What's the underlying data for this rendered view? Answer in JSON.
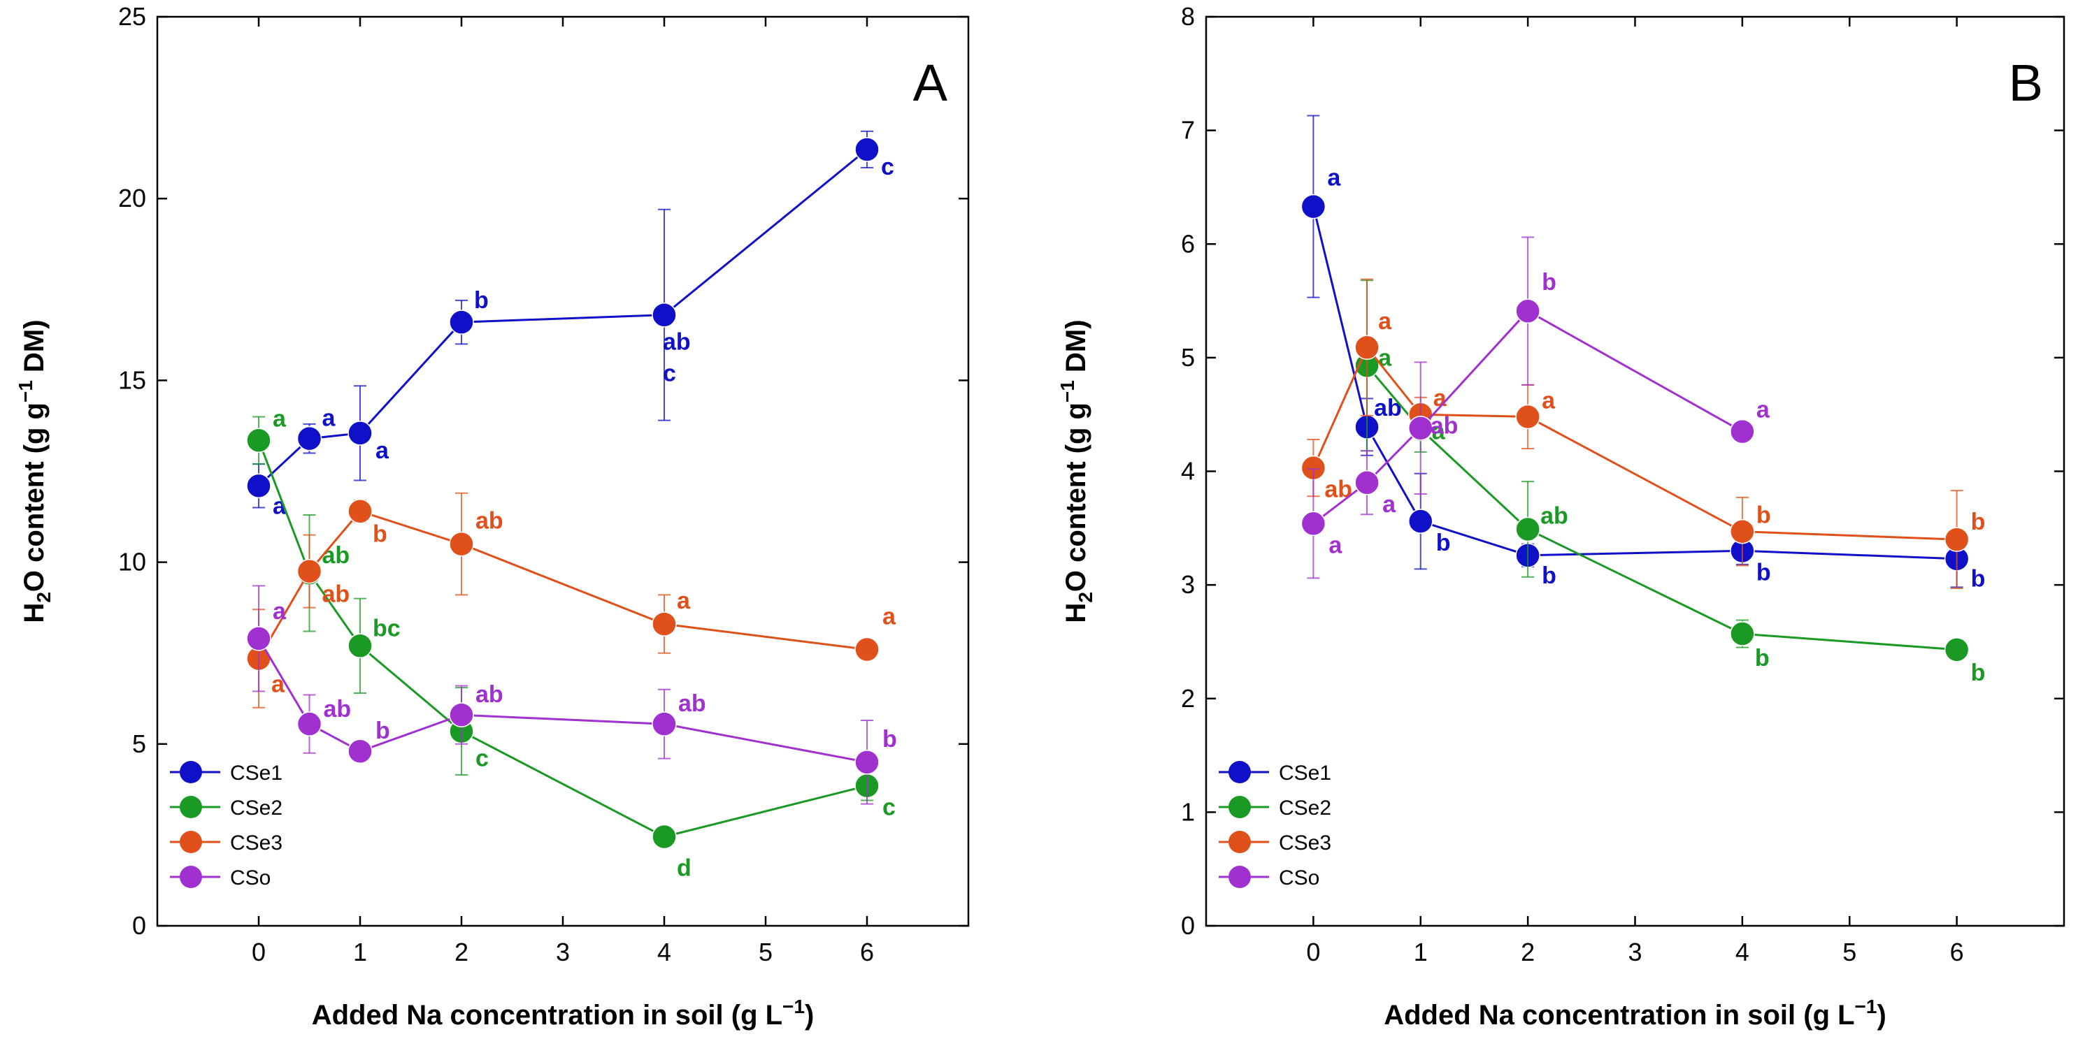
{
  "chart_data": [
    {
      "type": "line",
      "panel_label": "A",
      "xlabel": "Added Na concentration in soil (g L",
      "xlabel_sup": "−1",
      "xlabel_end": ")",
      "ylabel_pre": "H",
      "ylabel_sub": "2",
      "ylabel_mid": "O content (g g",
      "ylabel_sup": "−1",
      "ylabel_end": " DM)",
      "xlim": [
        -1,
        7
      ],
      "ylim": [
        0,
        25
      ],
      "xticks": [
        "0",
        "1",
        "2",
        "3",
        "4",
        "5",
        "6"
      ],
      "xtick_values": [
        0,
        1,
        2,
        3,
        4,
        5,
        6
      ],
      "yticks": [
        "0",
        "5",
        "10",
        "15",
        "20",
        "25"
      ],
      "ytick_values": [
        0,
        5,
        10,
        15,
        20,
        25
      ],
      "legend_position": "bottom-left",
      "series": [
        {
          "name": "CSe1",
          "color": "#1010c8",
          "x": [
            0,
            0.5,
            1,
            2,
            4,
            6
          ],
          "y": [
            12.1,
            13.4,
            13.55,
            16.6,
            16.8,
            21.35
          ],
          "err": [
            0.6,
            0.4,
            1.3,
            0.6,
            2.9,
            0.5
          ],
          "labels": [
            "a",
            "a",
            "a",
            "b",
            "ab c",
            "c"
          ]
        },
        {
          "name": "CSe2",
          "color": "#1a9a24",
          "x": [
            0,
            0.5,
            1,
            2,
            4,
            6
          ],
          "y": [
            13.35,
            9.7,
            7.7,
            5.35,
            2.45,
            3.85
          ],
          "err": [
            0.65,
            1.6,
            1.3,
            1.2,
            0.2,
            0.4
          ],
          "labels": [
            "a",
            "ab",
            "bc",
            "c",
            "d",
            "c"
          ]
        },
        {
          "name": "CSe3",
          "color": "#e0501a",
          "x": [
            0,
            0.5,
            1,
            2,
            4,
            6
          ],
          "y": [
            7.35,
            9.75,
            11.4,
            10.5,
            8.3,
            7.6
          ],
          "err": [
            1.35,
            1.0,
            0.3,
            1.4,
            0.8,
            0.15
          ],
          "labels": [
            "a",
            "ab",
            "b",
            "ab",
            "a",
            "a"
          ]
        },
        {
          "name": "CSo",
          "color": "#a030d0",
          "x": [
            0,
            0.5,
            1,
            2,
            4,
            6
          ],
          "y": [
            7.9,
            5.55,
            4.8,
            5.8,
            5.55,
            4.5
          ],
          "err": [
            1.45,
            0.8,
            0.15,
            0.8,
            0.95,
            1.15
          ],
          "labels": [
            "a",
            "ab",
            "b",
            "ab",
            "ab",
            "b"
          ]
        }
      ]
    },
    {
      "type": "line",
      "panel_label": "B",
      "xlabel": "Added Na concentration in soil (g L",
      "xlabel_sup": "−1",
      "xlabel_end": ")",
      "ylabel_pre": "H",
      "ylabel_sub": "2",
      "ylabel_mid": "O content (g g",
      "ylabel_sup": "−1",
      "ylabel_end": " DM)",
      "xlim": [
        -1,
        7
      ],
      "ylim": [
        0,
        8
      ],
      "xticks": [
        "0",
        "1",
        "2",
        "3",
        "4",
        "5",
        "6"
      ],
      "xtick_values": [
        0,
        1,
        2,
        3,
        4,
        5,
        6
      ],
      "yticks": [
        "0",
        "1",
        "2",
        "3",
        "4",
        "5",
        "6",
        "7",
        "8"
      ],
      "ytick_values": [
        0,
        1,
        2,
        3,
        4,
        5,
        6,
        7,
        8
      ],
      "legend_position": "bottom-left",
      "series": [
        {
          "name": "CSe1",
          "color": "#1010c8",
          "x": [
            0,
            0.5,
            1,
            2,
            4,
            6
          ],
          "y": [
            6.33,
            4.39,
            3.56,
            3.26,
            3.3,
            3.23
          ],
          "err": [
            0.8,
            0.25,
            0.42,
            0.1,
            0.12,
            0.25
          ],
          "labels": [
            "a",
            "ab",
            "b",
            "b",
            "b",
            "b"
          ]
        },
        {
          "name": "CSe2",
          "color": "#1a9a24",
          "x": [
            0,
            0.5,
            1,
            2,
            4,
            6
          ],
          "y": [
            null,
            4.93,
            4.37,
            3.49,
            2.57,
            2.43
          ],
          "err": [
            0,
            0.75,
            0.2,
            0.42,
            0.12,
            0.06
          ],
          "labels": [
            "",
            "a",
            "a",
            "ab",
            "b",
            "b"
          ]
        },
        {
          "name": "CSe3",
          "color": "#e0501a",
          "x": [
            0,
            0.5,
            1,
            2,
            4,
            6
          ],
          "y": [
            4.03,
            5.09,
            4.5,
            4.48,
            3.47,
            3.4
          ],
          "err": [
            0.25,
            0.6,
            0.15,
            0.28,
            0.3,
            0.43
          ],
          "labels": [
            "ab",
            "a",
            "a",
            "a",
            "b",
            "b"
          ]
        },
        {
          "name": "CSo",
          "color": "#a030d0",
          "x": [
            0,
            0.5,
            1,
            2,
            4,
            6
          ],
          "y": [
            3.54,
            3.9,
            4.38,
            5.41,
            4.35,
            null
          ],
          "err": [
            0.48,
            0.28,
            0.58,
            0.65,
            0.05,
            0
          ],
          "labels": [
            "a",
            "a",
            "ab",
            "b",
            "a",
            ""
          ]
        }
      ]
    }
  ]
}
